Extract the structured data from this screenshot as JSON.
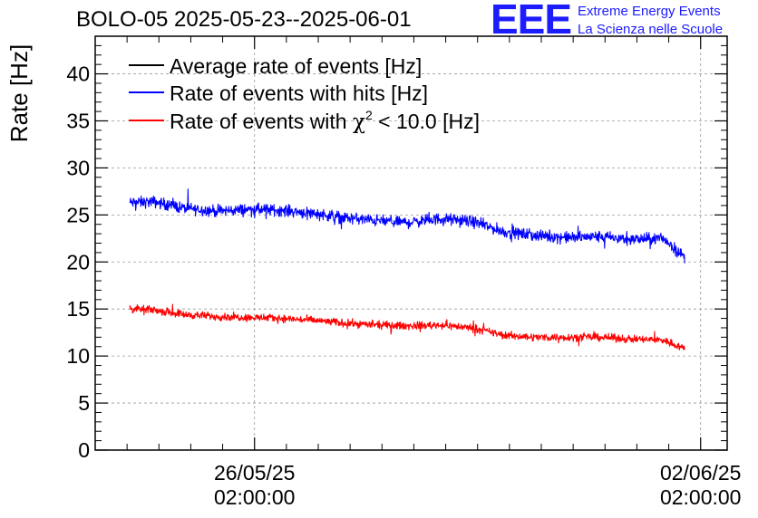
{
  "header": {
    "title": "BOLO-05 2025-05-23--2025-06-01",
    "logo_text": "EEE",
    "logo_line1": "Extreme Energy Events",
    "logo_line2": "La Scienza nelle Scuole"
  },
  "colors": {
    "average": "#000000",
    "hits": "#0000ff",
    "chi2": "#ff0000",
    "logo": "#1c1cff",
    "grid": "#999999"
  },
  "chart_data": {
    "type": "line",
    "ylabel": "Rate [Hz]",
    "ylim": [
      0,
      44
    ],
    "xlim": [
      "2025-05-23T14:00",
      "2025-06-02T12:00"
    ],
    "y_ticks": [
      0,
      5,
      10,
      15,
      20,
      25,
      30,
      35,
      40
    ],
    "x_ticks": [
      {
        "t": "2025-05-26T02:00",
        "line1": "26/05/25",
        "line2": "02:00:00"
      },
      {
        "t": "2025-06-02T02:00",
        "line1": "02/06/25",
        "line2": "02:00:00"
      }
    ],
    "grid": true,
    "legend_position": "top-left",
    "legend_chi_symbol": "χ",
    "legend_chi_sup": "2",
    "series": [
      {
        "name": "Average rate of events [Hz]",
        "color": "#000000",
        "x": [],
        "y": []
      },
      {
        "name": "Rate of events with hits [Hz]",
        "color": "#0000ff",
        "noise": 0.9,
        "x": [
          "2025-05-24T03:00",
          "2025-05-24T12:00",
          "2025-05-25T00:00",
          "2025-05-25T12:00",
          "2025-05-26T00:00",
          "2025-05-26T12:00",
          "2025-05-27T00:00",
          "2025-05-27T12:00",
          "2025-05-28T00:00",
          "2025-05-28T12:00",
          "2025-05-29T00:00",
          "2025-05-29T12:00",
          "2025-05-30T00:00",
          "2025-05-30T12:00",
          "2025-05-31T00:00",
          "2025-05-31T12:00",
          "2025-06-01T00:00",
          "2025-06-01T12:00",
          "2025-06-01T20:00"
        ],
        "y": [
          26.3,
          26.4,
          25.7,
          25.4,
          25.6,
          25.5,
          25.2,
          24.7,
          24.4,
          24.2,
          24.6,
          24.3,
          23.2,
          22.8,
          22.6,
          22.7,
          22.4,
          22.5,
          20.5
        ]
      },
      {
        "name": "Rate of events with χ² < 10.0 [Hz]",
        "color": "#ff0000",
        "noise": 0.6,
        "x": [
          "2025-05-24T03:00",
          "2025-05-24T12:00",
          "2025-05-25T00:00",
          "2025-05-25T12:00",
          "2025-05-26T00:00",
          "2025-05-26T12:00",
          "2025-05-27T00:00",
          "2025-05-27T12:00",
          "2025-05-28T00:00",
          "2025-05-28T12:00",
          "2025-05-29T00:00",
          "2025-05-29T12:00",
          "2025-05-30T00:00",
          "2025-05-30T12:00",
          "2025-05-31T00:00",
          "2025-05-31T12:00",
          "2025-06-01T00:00",
          "2025-06-01T12:00",
          "2025-06-01T20:00"
        ],
        "y": [
          15.0,
          14.9,
          14.4,
          14.2,
          14.1,
          14.0,
          13.8,
          13.5,
          13.3,
          13.2,
          13.3,
          13.0,
          12.2,
          12.0,
          12.0,
          12.0,
          11.8,
          11.7,
          10.8
        ]
      }
    ]
  }
}
